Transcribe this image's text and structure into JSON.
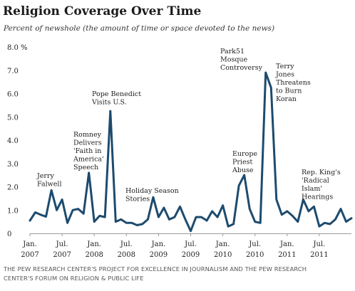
{
  "title": "Religion Coverage Over Time",
  "subtitle": "Percent of newshole (the amount of time or space devoted to the news)",
  "footer": {
    "line1": "THE PEW RESEARCH CENTER'S PROJECT FOR EXCELLENCE IN JOURNALISM AND THE PEW RESEARCH",
    "line2": "CENTER'S FORUM ON RELIGION & PUBLIC LIFE"
  },
  "colors": {
    "line": "#1d4b6e",
    "axis": "#999999",
    "text": "#222222"
  },
  "chart_data": {
    "type": "line",
    "title": "Religion Coverage Over Time",
    "subtitle": "Percent of newshole (the amount of time or space devoted to the news)",
    "unit_label": "%",
    "ylim": [
      0,
      8
    ],
    "y_ticks": [
      "0",
      "1.0",
      "2.0",
      "3.0",
      "4.0",
      "5.0",
      "6.0",
      "7.0",
      "8.0 %"
    ],
    "grid": false,
    "x_tick_labels": [
      {
        "label": "Jan.",
        "year": "2007",
        "month_index": 0
      },
      {
        "label": "Jul.",
        "year": "2007",
        "month_index": 6
      },
      {
        "label": "Jan.",
        "year": "2008",
        "month_index": 12
      },
      {
        "label": "Jul.",
        "year": "2008",
        "month_index": 18
      },
      {
        "label": "Jan.",
        "year": "2009",
        "month_index": 24
      },
      {
        "label": "Jul.",
        "year": "2009",
        "month_index": 30
      },
      {
        "label": "Jan.",
        "year": "2010",
        "month_index": 36
      },
      {
        "label": "Jul.",
        "year": "2010",
        "month_index": 42
      },
      {
        "label": "Jan.",
        "year": "2011",
        "month_index": 48
      },
      {
        "label": "Jul.",
        "year": "2011",
        "month_index": 54
      }
    ],
    "series": [
      {
        "values": [
          0.55,
          0.9,
          0.8,
          0.72,
          1.85,
          1.0,
          1.45,
          0.45,
          1.0,
          1.05,
          0.85,
          2.6,
          0.5,
          0.75,
          0.7,
          5.25,
          0.5,
          0.6,
          0.45,
          0.45,
          0.35,
          0.4,
          0.6,
          1.55,
          0.7,
          1.1,
          0.6,
          0.7,
          1.15,
          0.6,
          0.1,
          0.7,
          0.7,
          0.55,
          0.95,
          0.7,
          1.2,
          0.3,
          0.4,
          2.05,
          2.5,
          1.05,
          0.5,
          0.45,
          6.9,
          6.25,
          1.45,
          0.8,
          0.95,
          0.75,
          0.5,
          1.45,
          0.95,
          1.15,
          0.3,
          0.45,
          0.4,
          0.6,
          1.05,
          0.5,
          0.65
        ]
      }
    ],
    "annotations": [
      {
        "lines": [
          "Jerry",
          "Falwell"
        ]
      },
      {
        "lines": [
          "Romney",
          "Delivers",
          "'Faith in",
          "America'",
          "Speech"
        ]
      },
      {
        "lines": [
          "Pope Benedict",
          "Visits U.S."
        ]
      },
      {
        "lines": [
          "Holiday Season",
          "Stories"
        ]
      },
      {
        "lines": [
          "Park51",
          "Mosque",
          "Controversy"
        ]
      },
      {
        "lines": [
          "Europe",
          "Priest",
          "Abuse"
        ]
      },
      {
        "lines": [
          "Terry",
          "Jones",
          "Threatens",
          "to Burn",
          "Koran"
        ]
      },
      {
        "lines": [
          "Rep. King's",
          "'Radical",
          "Islam'",
          "Hearings"
        ]
      }
    ]
  }
}
